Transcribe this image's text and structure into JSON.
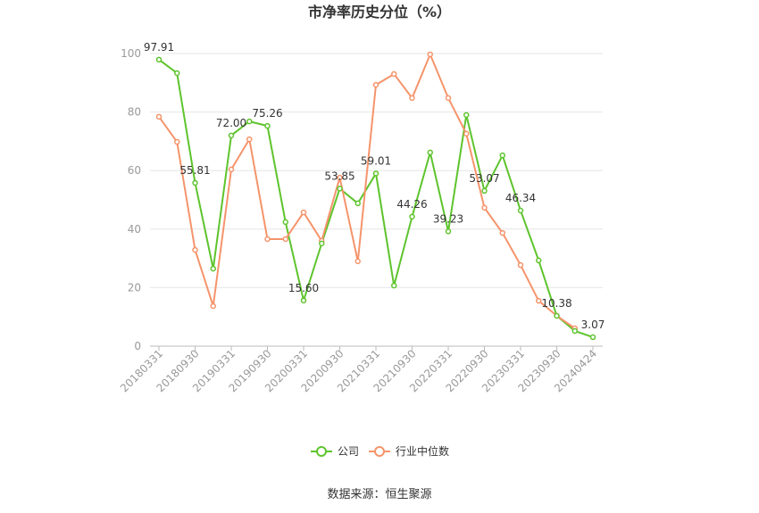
{
  "chart_data": {
    "type": "line",
    "title": "市净率历史分位（%）",
    "ylim": [
      0,
      100
    ],
    "yticks": [
      0,
      20,
      40,
      60,
      80,
      100
    ],
    "grid": true,
    "legend_position": "bottom",
    "categories": [
      "20180331",
      "",
      "20180930",
      "",
      "20190331",
      "",
      "20190930",
      "",
      "20200331",
      "",
      "20200930",
      "",
      "20210331",
      "",
      "20210930",
      "",
      "20220331",
      "",
      "20220930",
      "",
      "20230331",
      "",
      "20230930",
      "",
      "20240424"
    ],
    "series": [
      {
        "name": "公司",
        "color": "#5ec42d",
        "values": [
          97.91,
          93.3,
          55.81,
          26.5,
          72.0,
          76.8,
          75.26,
          42.4,
          15.6,
          35.1,
          53.85,
          48.8,
          59.01,
          20.7,
          44.26,
          66.2,
          39.23,
          79.0,
          53.07,
          65.2,
          46.34,
          29.3,
          10.38,
          5.2,
          3.07
        ],
        "labels": [
          "97.91",
          null,
          "55.81",
          null,
          "72.00",
          null,
          "75.26",
          null,
          "15.60",
          null,
          "53.85",
          null,
          "59.01",
          null,
          "44.26",
          null,
          "39.23",
          null,
          "53.07",
          null,
          "46.34",
          null,
          "10.38",
          null,
          "3.07"
        ]
      },
      {
        "name": "行业中位数",
        "color": "#f5946b",
        "values": [
          78.4,
          69.8,
          32.9,
          13.7,
          60.4,
          70.7,
          36.6,
          36.6,
          45.7,
          36.0,
          57.6,
          29.0,
          89.3,
          93.0,
          84.8,
          99.7,
          84.8,
          72.6,
          47.3,
          38.7,
          27.7,
          15.5,
          10.4,
          6.1,
          null
        ]
      }
    ]
  },
  "source": "数据来源：恒生聚源"
}
